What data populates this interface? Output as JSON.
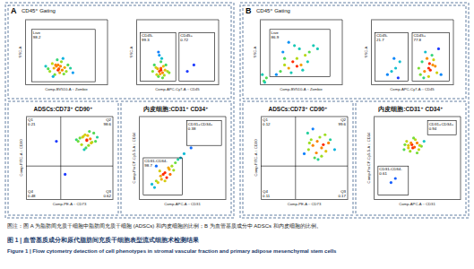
{
  "figure": {
    "panels": [
      {
        "label": "A",
        "gating_title": "CD45⁺ Gating"
      },
      {
        "label": "B",
        "gating_title": "CD45⁺ Gating"
      }
    ],
    "caption": "图注：图 A 为脂肪间充质干细胞中脂肪间充质干细胞 (ADSCs) 和内皮细胞的比例；B 为血管基质成分中 ADSCs 和内皮细胞的比例。",
    "title_cn": "图 1 | 血管基质成分和原代脂肪间充质干细胞表型流式细胞术检测结果",
    "title_en": "Figure 1 | Flow cytometry detection of cell phenotypes in stromal vascular fraction and primary adipose mesenchymal stem cells"
  },
  "chart_data": [
    {
      "type": "scatter",
      "x_label": "Comp-BV510-A :: Zombie",
      "y_label": "SSC-A",
      "xlim": [
        0,
        100
      ],
      "ylim": [
        0,
        100
      ],
      "tick_labels": false,
      "x": [
        30,
        35,
        40,
        45,
        38,
        42,
        48,
        33,
        50,
        36,
        44,
        52,
        28,
        46,
        40,
        55,
        34,
        39,
        43,
        47,
        37,
        41,
        58,
        25
      ],
      "y": [
        20,
        25,
        30,
        22,
        28,
        18,
        26,
        32,
        20,
        15,
        35,
        30,
        24,
        40,
        22,
        25,
        12,
        38,
        28,
        16,
        30,
        24,
        18,
        28
      ],
      "gates": [
        {
          "label": "Live",
          "value": 98.2,
          "xlim": [
            8,
            85
          ],
          "ylim": [
            4,
            85
          ]
        }
      ]
    },
    {
      "type": "scatter",
      "x_label": "Comp-APC-Cy7-A :: CD45",
      "y_label": "SSC-A",
      "xlim": [
        0,
        100
      ],
      "ylim": [
        0,
        100
      ],
      "tick_labels": false,
      "x": [
        25,
        28,
        30,
        32,
        35,
        22,
        27,
        33,
        38,
        30,
        26,
        29,
        34,
        31,
        24,
        36,
        28,
        32,
        30,
        40,
        20,
        27,
        62,
        70
      ],
      "y": [
        15,
        20,
        25,
        18,
        22,
        30,
        12,
        28,
        20,
        35,
        24,
        16,
        14,
        40,
        26,
        30,
        45,
        10,
        22,
        18,
        20,
        50,
        20,
        30
      ],
      "gates": [
        {
          "label": "CD45-",
          "value": 99.3,
          "xlim": [
            5,
            48
          ],
          "ylim": [
            5,
            80
          ]
        },
        {
          "label": "CD45+",
          "value": 0.72,
          "xlim": [
            52,
            95
          ],
          "ylim": [
            5,
            80
          ]
        }
      ]
    },
    {
      "type": "scatter",
      "title": "ADSCs:CD73⁺ CD90⁺",
      "x_label": "Comp-PE-A :: CD73",
      "y_label": "Comp-FITC-A :: CD90",
      "xlim": [
        0,
        100
      ],
      "ylim": [
        0,
        100
      ],
      "tick_labels": false,
      "x": [
        60,
        65,
        70,
        75,
        68,
        72,
        62,
        78,
        80,
        66,
        74,
        70,
        64,
        76,
        71,
        69,
        73,
        67,
        58,
        82,
        35,
        45
      ],
      "y": [
        70,
        75,
        72,
        68,
        78,
        65,
        74,
        80,
        70,
        76,
        73,
        71,
        66,
        69,
        77,
        62,
        82,
        60,
        72,
        75,
        70,
        30
      ],
      "quadrants": {
        "x": 40,
        "y": 40,
        "labels": [
          "Q1",
          "Q2",
          "Q3",
          "Q4"
        ],
        "values": [
          0.21,
          98.6,
          0.62,
          0.48
        ]
      }
    },
    {
      "type": "scatter",
      "title": "内皮细胞:CD31⁺ CD34⁺",
      "x_label": "Comp-APC-A :: CD31",
      "y_label": "Comp-PerCP-Cy5-5-A :: CD34",
      "xlim": [
        0,
        100
      ],
      "ylim": [
        0,
        100
      ],
      "tick_labels": false,
      "x": [
        15,
        20,
        25,
        30,
        35,
        22,
        28,
        32,
        38,
        42,
        18,
        26,
        34,
        40,
        45,
        24,
        30,
        36,
        48,
        52,
        60,
        20
      ],
      "y": [
        18,
        22,
        28,
        32,
        36,
        20,
        30,
        26,
        40,
        44,
        14,
        24,
        38,
        35,
        48,
        34,
        22,
        30,
        50,
        55,
        62,
        40
      ],
      "gates": [
        {
          "label": "CD31+CD34+",
          "value": 0.38,
          "xlim": [
            55,
            95
          ],
          "ylim": [
            65,
            95
          ]
        },
        {
          "label": "CD31-CD34-",
          "value": 98.7,
          "xlim": [
            5,
            50
          ],
          "ylim": [
            5,
            50
          ]
        }
      ]
    },
    {
      "type": "scatter",
      "x_label": "Comp-BV510-A :: Zombie",
      "y_label": "SSC-A",
      "xlim": [
        0,
        100
      ],
      "ylim": [
        0,
        100
      ],
      "tick_labels": false,
      "x": [
        20,
        25,
        30,
        35,
        40,
        45,
        50,
        55,
        60,
        30,
        38,
        48,
        58,
        65,
        70,
        28,
        42,
        52,
        35,
        45,
        5,
        8,
        3,
        6
      ],
      "y": [
        15,
        20,
        30,
        25,
        35,
        40,
        30,
        45,
        50,
        40,
        18,
        55,
        35,
        60,
        55,
        50,
        60,
        22,
        65,
        28,
        5,
        10,
        15,
        3
      ],
      "gates": [
        {
          "label": "Live",
          "value": 86.9,
          "xlim": [
            12,
            85
          ],
          "ylim": [
            12,
            85
          ]
        }
      ]
    },
    {
      "type": "scatter",
      "x_label": "Comp-APC-Cy7-A :: CD45",
      "y_label": "SSC-A",
      "xlim": [
        0,
        100
      ],
      "ylim": [
        0,
        100
      ],
      "tick_labels": false,
      "x": [
        60,
        65,
        70,
        75,
        80,
        62,
        68,
        72,
        78,
        85,
        66,
        74,
        58,
        70,
        76,
        82,
        64,
        71,
        25,
        30,
        20,
        35,
        28,
        33
      ],
      "y": [
        15,
        20,
        25,
        30,
        18,
        35,
        40,
        22,
        28,
        15,
        50,
        45,
        25,
        12,
        38,
        55,
        10,
        32,
        20,
        25,
        15,
        35,
        40,
        10
      ],
      "gates": [
        {
          "label": "CD45-",
          "value": 21.7,
          "xlim": [
            5,
            45
          ],
          "ylim": [
            5,
            80
          ]
        },
        {
          "label": "CD45+",
          "value": 77.8,
          "xlim": [
            50,
            95
          ],
          "ylim": [
            5,
            80
          ]
        }
      ]
    },
    {
      "type": "scatter",
      "title": "ADSCs:CD73⁺ CD90⁺",
      "x_label": "Comp-PE-A :: CD73",
      "y_label": "Comp-FITC-A :: CD90",
      "xlim": [
        0,
        100
      ],
      "ylim": [
        0,
        100
      ],
      "tick_labels": false,
      "x": [
        50,
        55,
        60,
        65,
        70,
        75,
        58,
        62,
        68,
        72,
        78,
        54,
        64,
        74,
        66,
        80,
        60,
        70,
        56,
        85
      ],
      "y": [
        55,
        60,
        65,
        70,
        62,
        58,
        72,
        50,
        75,
        66,
        68,
        80,
        56,
        78,
        48,
        72,
        85,
        52,
        68,
        60
      ],
      "quadrants": {
        "x": 40,
        "y": 40,
        "labels": [
          "Q1",
          "Q2",
          "Q3",
          "Q4"
        ],
        "values": [
          0.12,
          99.6,
          0.17,
          0.11
        ]
      }
    },
    {
      "type": "scatter",
      "title": "内皮细胞:CD31⁺ CD34⁺",
      "x_label": "Comp-APC-A :: CD31",
      "y_label": "Comp-PerCP-Cy5-5-A :: CD34",
      "xlim": [
        0,
        100
      ],
      "ylim": [
        0,
        100
      ],
      "tick_labels": false,
      "x": [
        35,
        40,
        45,
        50,
        55,
        38,
        42,
        48,
        52,
        44,
        46,
        40,
        50,
        36,
        58,
        47,
        43,
        53,
        20,
        25
      ],
      "y": [
        60,
        65,
        62,
        68,
        64,
        70,
        58,
        72,
        60,
        66,
        74,
        62,
        56,
        66,
        70,
        63,
        68,
        65,
        20,
        25
      ],
      "gates": [
        {
          "label": "CD31+CD34+",
          "value": 0.94,
          "xlim": [
            62,
            95
          ],
          "ylim": [
            78,
            95
          ]
        },
        {
          "label": "CD31-CD34-",
          "value": 0.61,
          "xlim": [
            5,
            40
          ],
          "ylim": [
            5,
            40
          ]
        }
      ]
    }
  ]
}
